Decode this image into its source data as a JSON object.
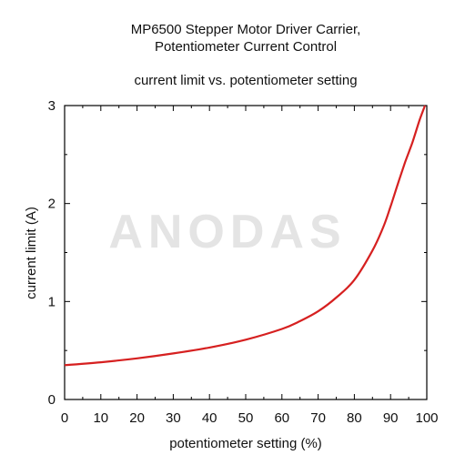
{
  "chart_data": {
    "type": "line",
    "title_lines": [
      "MP6500 Stepper Motor Driver Carrier,",
      "Potentiometer Current Control"
    ],
    "subtitle": "current limit vs. potentiometer setting",
    "xlabel": "potentiometer setting (%)",
    "ylabel": "current limit (A)",
    "xlim": [
      0,
      100
    ],
    "ylim": [
      0,
      3
    ],
    "x_ticks": [
      "0",
      "10",
      "20",
      "30",
      "40",
      "50",
      "60",
      "70",
      "80",
      "90",
      "100"
    ],
    "y_ticks": [
      "0",
      "1",
      "2",
      "3"
    ],
    "grid": false,
    "legend": "none",
    "series": [
      {
        "color": "#d62020",
        "x": [
          0,
          10,
          20,
          30,
          40,
          50,
          60,
          65,
          70,
          75,
          80,
          85,
          88,
          90,
          92,
          94,
          96,
          98,
          99.5
        ],
        "y": [
          0.35,
          0.38,
          0.42,
          0.47,
          0.53,
          0.61,
          0.72,
          0.8,
          0.9,
          1.04,
          1.22,
          1.52,
          1.76,
          1.97,
          2.2,
          2.42,
          2.62,
          2.85,
          3.0
        ]
      }
    ]
  },
  "watermark": "ANODAS"
}
